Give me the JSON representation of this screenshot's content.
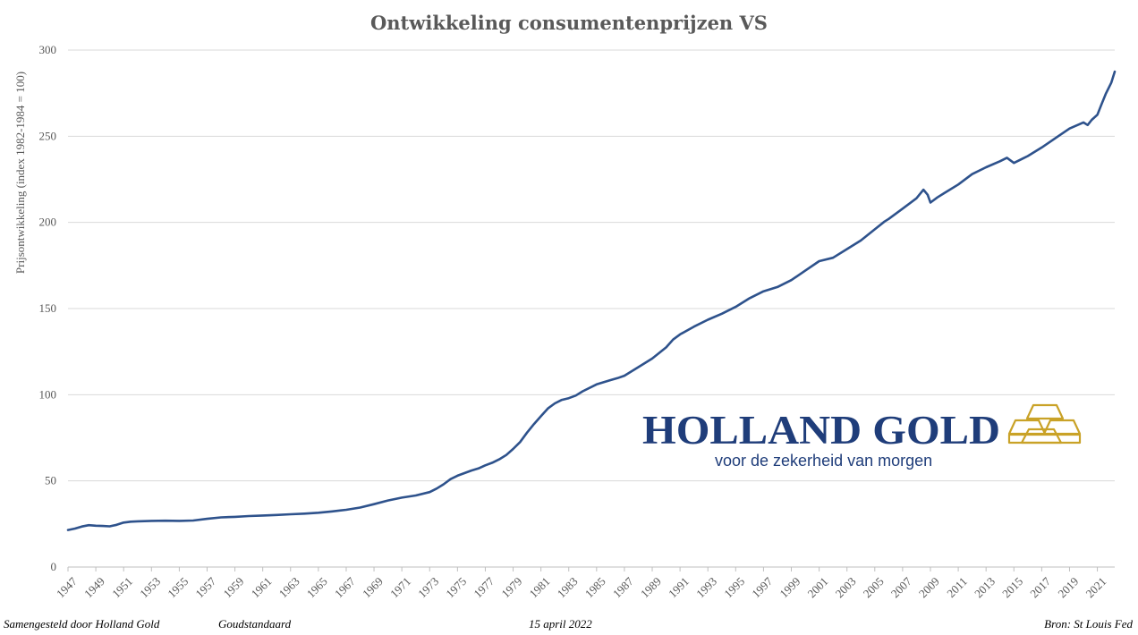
{
  "chart_data": {
    "type": "line",
    "title": "Ontwikkeling consumentenprijzen VS",
    "ylabel": "Prijsontwikkeling (index 1982-1984 = 100)",
    "xlabel": "",
    "ylim": [
      0,
      300
    ],
    "yticks": [
      "0",
      "50",
      "100",
      "150",
      "200",
      "250",
      "300"
    ],
    "xlim": [
      1947,
      2022.25
    ],
    "xticks": [
      "1947",
      "1949",
      "1951",
      "1953",
      "1955",
      "1957",
      "1959",
      "1961",
      "1963",
      "1965",
      "1967",
      "1969",
      "1971",
      "1973",
      "1975",
      "1977",
      "1979",
      "1981",
      "1983",
      "1985",
      "1987",
      "1989",
      "1991",
      "1993",
      "1995",
      "1997",
      "1999",
      "2001",
      "2003",
      "2005",
      "2007",
      "2009",
      "2011",
      "2013",
      "2015",
      "2017",
      "2019",
      "2021"
    ],
    "grid": true,
    "line_color": "#2e528c",
    "series": [
      {
        "x": [
          1947.0,
          1947.5,
          1948.0,
          1948.5,
          1949.0,
          1949.5,
          1950.0,
          1950.5,
          1951.0,
          1951.5,
          1952.0,
          1953.0,
          1954.0,
          1955.0,
          1956.0,
          1957.0,
          1958.0,
          1959.0,
          1960.0,
          1961.0,
          1962.0,
          1963.0,
          1964.0,
          1965.0,
          1966.0,
          1967.0,
          1968.0,
          1969.0,
          1970.0,
          1971.0,
          1972.0,
          1973.0,
          1973.5,
          1974.0,
          1974.5,
          1975.0,
          1975.5,
          1976.0,
          1976.5,
          1977.0,
          1977.5,
          1978.0,
          1978.5,
          1979.0,
          1979.5,
          1980.0,
          1980.5,
          1981.0,
          1981.5,
          1982.0,
          1982.5,
          1983.0,
          1983.5,
          1984.0,
          1985.0,
          1986.0,
          1986.5,
          1987.0,
          1988.0,
          1989.0,
          1990.0,
          1990.5,
          1991.0,
          1992.0,
          1993.0,
          1994.0,
          1995.0,
          1996.0,
          1997.0,
          1998.0,
          1999.0,
          2000.0,
          2001.0,
          2002.0,
          2003.0,
          2004.0,
          2005.0,
          2005.7,
          2006.0,
          2007.0,
          2008.0,
          2008.5,
          2008.8,
          2009.0,
          2009.5,
          2010.0,
          2011.0,
          2012.0,
          2013.0,
          2014.0,
          2014.5,
          2015.0,
          2016.0,
          2017.0,
          2018.0,
          2019.0,
          2020.0,
          2020.3,
          2020.6,
          2021.0,
          2021.3,
          2021.6,
          2022.0,
          2022.25
        ],
        "y": [
          21.5,
          22.3,
          23.5,
          24.3,
          24.0,
          23.8,
          23.6,
          24.5,
          25.8,
          26.3,
          26.5,
          26.8,
          26.9,
          26.8,
          27.0,
          28.0,
          28.8,
          29.1,
          29.6,
          29.9,
          30.2,
          30.6,
          31.0,
          31.5,
          32.3,
          33.2,
          34.5,
          36.5,
          38.6,
          40.3,
          41.5,
          43.5,
          45.5,
          48.0,
          51.0,
          53.0,
          54.5,
          56.0,
          57.2,
          59.0,
          60.5,
          62.5,
          65.0,
          68.5,
          72.5,
          78.0,
          83.0,
          87.5,
          92.0,
          95.0,
          97.0,
          98.0,
          99.5,
          102.0,
          106.0,
          108.5,
          109.6,
          111.0,
          116.0,
          121.0,
          127.5,
          132.0,
          135.0,
          139.5,
          143.5,
          147.0,
          151.0,
          156.0,
          160.0,
          162.5,
          166.5,
          172.0,
          177.5,
          179.5,
          184.5,
          189.5,
          196.0,
          200.5,
          202.0,
          208.0,
          214.0,
          219.0,
          216.0,
          211.5,
          214.5,
          217.0,
          222.0,
          228.0,
          232.0,
          235.5,
          237.5,
          234.5,
          238.5,
          243.5,
          249.0,
          254.5,
          258.0,
          256.5,
          259.5,
          262.5,
          268.5,
          274.5,
          281.0,
          287.5
        ]
      }
    ]
  },
  "logo": {
    "wordmark": "HOLLAND GOLD",
    "tagline": "voor de zekerheid van morgen",
    "wordmark_color": "#1f3d7a",
    "emblem_color": "#c9a227",
    "emblem_icon": "gold-bars-icon"
  },
  "footer": {
    "left": "Samengesteld door Holland Gold",
    "left2": "Goudstandaard",
    "center": "15 april 2022",
    "right": "Bron: St Louis Fed"
  }
}
